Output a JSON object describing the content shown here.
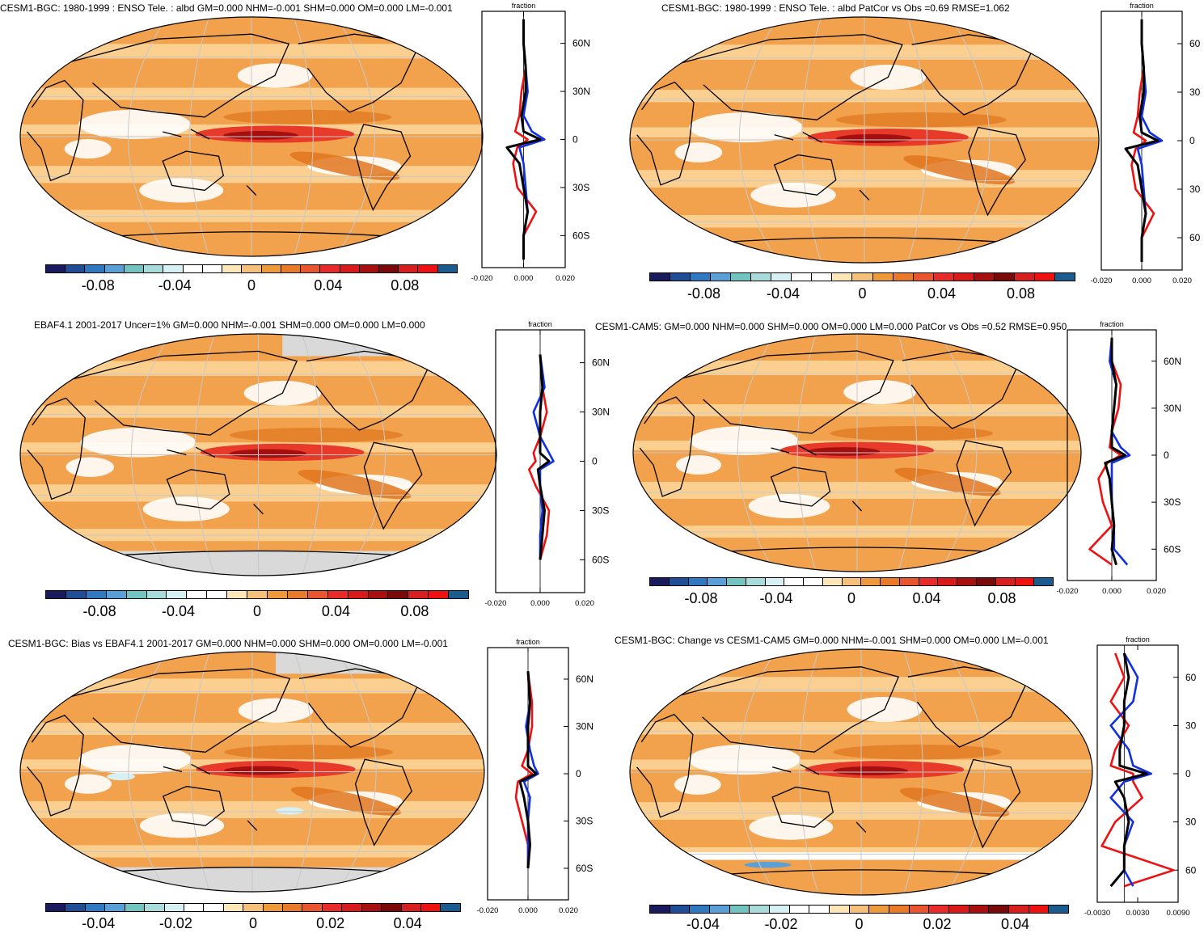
{
  "colors": {
    "land_outline": "#000000",
    "grid": "#c8c8c8",
    "colorscale": [
      "#1a1a5e",
      "#1f4e96",
      "#2f79c0",
      "#5aa0d8",
      "#72c4c0",
      "#a8dcdc",
      "#d6f0f4",
      "#ffffff",
      "#ffffff",
      "#fde6b8",
      "#f5c07a",
      "#ef9a3a",
      "#e87a2a",
      "#e8552f",
      "#e82a2a",
      "#d91a1a",
      "#a80f0f",
      "#7a0a0a",
      "#d81f1f",
      "#ee1111",
      "#1a5c90"
    ],
    "profile_red": "#ee1111",
    "profile_blue": "#1030e0",
    "profile_black": "#000000",
    "missing": "#d9d9d9"
  },
  "panels": [
    {
      "id": "p1",
      "title": "CESM1-BGC: 1980-1999 : ENSO Tele. : albd GM=0.000 NHM=-0.001 SHM=0.000 OM=0.000 LM=-0.001",
      "colorbar_labels": [
        "-0.08",
        "-0.04",
        "0",
        "0.04",
        "0.08"
      ],
      "profile": {
        "unit": "fraction",
        "xticks": [
          "-0.020",
          "0.000",
          "0.020"
        ],
        "lat_labels": [
          "60N",
          "30N",
          "0",
          "30S",
          "60S"
        ]
      }
    },
    {
      "id": "p2",
      "title": "CESM1-BGC: 1980-1999 : ENSO Tele. : albd PatCor vs Obs =0.69 RMSE=1.062",
      "colorbar_labels": [
        "-0.08",
        "-0.04",
        "0",
        "0.04",
        "0.08"
      ],
      "profile": {
        "unit": "fraction",
        "xticks": [
          "-0.020",
          "0.000",
          "0.020"
        ],
        "lat_labels": [
          "60",
          "30",
          "0",
          "30",
          "60"
        ]
      }
    },
    {
      "id": "p3",
      "title": "EBAF4.1 2001-2017 Uncer=1% GM=0.000 NHM=-0.001 SHM=0.000 OM=0.000 LM=0.000",
      "colorbar_labels": [
        "-0.08",
        "-0.04",
        "0",
        "0.04",
        "0.08"
      ],
      "profile": {
        "unit": "fraction",
        "xticks": [
          "-0.020",
          "0.000",
          "0.020"
        ],
        "lat_labels": [
          "60N",
          "30N",
          "0",
          "30S",
          "60S"
        ]
      }
    },
    {
      "id": "p4",
      "title": "CESM1-CAM5: GM=0.000 NHM=0.000 SHM=0.000 OM=0.000 LM=0.000 PatCor vs Obs =0.52 RMSE=0.950",
      "colorbar_labels": [
        "-0.08",
        "-0.04",
        "0",
        "0.04",
        "0.08"
      ],
      "profile": {
        "unit": "fraction",
        "xticks": [
          "-0.020",
          "0.000",
          "0.020"
        ],
        "lat_labels": [
          "60N",
          "30N",
          "0",
          "30S",
          "60S"
        ]
      }
    },
    {
      "id": "p5",
      "title": "CESM1-BGC: Bias vs EBAF4.1 2001-2017 GM=0.000 NHM=0.000 SHM=0.000 OM=0.000 LM=-0.001",
      "colorbar_labels": [
        "-0.04",
        "-0.02",
        "0",
        "0.02",
        "0.04"
      ],
      "profile": {
        "unit": "fraction",
        "xticks": [
          "-0.020",
          "0.000",
          "0.020"
        ],
        "lat_labels": [
          "60N",
          "30N",
          "0",
          "30S",
          "60S"
        ]
      }
    },
    {
      "id": "p6",
      "title": "CESM1-BGC: Change vs CESM1-CAM5 GM=0.000 NHM=-0.001 SHM=0.000 OM=0.000 LM=-0.001",
      "colorbar_labels": [
        "-0.04",
        "-0.02",
        "0",
        "0.02",
        "0.04"
      ],
      "profile": {
        "unit": "fraction",
        "xticks": [
          "-0.0030",
          "0.0030",
          "0.0090"
        ],
        "lat_labels": [
          "60",
          "30",
          "0",
          "30",
          "60"
        ]
      }
    }
  ],
  "chart_data": [
    {
      "type": "heatmap",
      "panel": "p1",
      "title": "CESM1-BGC: 1980-1999 : ENSO Tele. : albd GM=0.000 NHM=-0.001 SHM=0.000 OM=0.000 LM=-0.001",
      "colorbar": {
        "ticks": [
          -0.08,
          -0.04,
          0,
          0.04,
          0.08
        ],
        "range": [
          -0.1,
          0.1
        ]
      },
      "zonal_profile": {
        "unit": "fraction",
        "xlim": [
          -0.02,
          0.02
        ],
        "ylim": [
          -80,
          80
        ],
        "lat": [
          75,
          60,
          45,
          30,
          15,
          5,
          0,
          -5,
          -15,
          -30,
          -45,
          -60,
          -75
        ],
        "series": [
          {
            "name": "red",
            "values": [
              0.0,
              0.0,
              0.001,
              -0.001,
              -0.002,
              -0.004,
              0.002,
              -0.003,
              -0.005,
              -0.003,
              0.006,
              0.0,
              0.0
            ]
          },
          {
            "name": "blue",
            "values": [
              0.0,
              0.0,
              0.001,
              0.002,
              0.0,
              0.004,
              0.01,
              -0.002,
              0.0,
              0.001,
              0.002,
              0.0,
              0.0
            ]
          },
          {
            "name": "black",
            "values": [
              0.0,
              0.0,
              0.001,
              0.001,
              -0.001,
              0.0,
              0.008,
              -0.008,
              -0.002,
              0.0,
              0.002,
              0.0,
              0.0
            ]
          }
        ]
      }
    },
    {
      "type": "heatmap",
      "panel": "p2",
      "title": "CESM1-BGC: 1980-1999 : ENSO Tele. : albd PatCor vs Obs =0.69 RMSE=1.062",
      "colorbar": {
        "ticks": [
          -0.08,
          -0.04,
          0,
          0.04,
          0.08
        ],
        "range": [
          -0.1,
          0.1
        ]
      },
      "zonal_profile": {
        "unit": "fraction",
        "xlim": [
          -0.02,
          0.02
        ],
        "ylim": [
          -80,
          80
        ],
        "lat": [
          75,
          60,
          45,
          30,
          15,
          5,
          0,
          -5,
          -15,
          -30,
          -45,
          -60,
          -75
        ],
        "series": [
          {
            "name": "red",
            "values": [
              0.0,
              0.0,
              0.001,
              -0.001,
              -0.002,
              -0.004,
              0.002,
              -0.003,
              -0.005,
              -0.003,
              0.006,
              0.0,
              0.0
            ]
          },
          {
            "name": "blue",
            "values": [
              0.0,
              0.0,
              0.001,
              0.002,
              0.0,
              0.004,
              0.01,
              -0.002,
              0.0,
              0.001,
              0.002,
              0.0,
              0.0
            ]
          },
          {
            "name": "black",
            "values": [
              0.0,
              0.0,
              0.001,
              0.001,
              -0.001,
              0.0,
              0.008,
              -0.008,
              -0.002,
              0.0,
              0.002,
              0.0,
              0.0
            ]
          }
        ]
      }
    },
    {
      "type": "heatmap",
      "panel": "p3",
      "title": "EBAF4.1 2001-2017 Uncer=1% GM=0.000 NHM=-0.001 SHM=0.000 OM=0.000 LM=0.000",
      "colorbar": {
        "ticks": [
          -0.08,
          -0.04,
          0,
          0.04,
          0.08
        ],
        "range": [
          -0.1,
          0.1
        ]
      },
      "zonal_profile": {
        "unit": "fraction",
        "xlim": [
          -0.02,
          0.02
        ],
        "ylim": [
          -80,
          80
        ],
        "lat": [
          65,
          45,
          30,
          15,
          5,
          0,
          -5,
          -15,
          -30,
          -45,
          -60
        ],
        "series": [
          {
            "name": "red",
            "values": [
              0.0,
              0.001,
              0.003,
              0.0,
              -0.003,
              -0.002,
              -0.005,
              -0.002,
              0.004,
              0.003,
              0.0
            ]
          },
          {
            "name": "blue",
            "values": [
              0.0,
              0.002,
              -0.003,
              0.0,
              0.004,
              0.006,
              0.0,
              0.0,
              0.001,
              0.0,
              0.0
            ]
          },
          {
            "name": "black",
            "values": [
              0.0,
              0.001,
              0.0,
              0.0,
              0.0,
              0.004,
              -0.001,
              0.0,
              0.002,
              0.001,
              0.0
            ]
          }
        ]
      }
    },
    {
      "type": "heatmap",
      "panel": "p4",
      "title": "CESM1-CAM5: GM=0.000 NHM=0.000 SHM=0.000 OM=0.000 LM=0.000 PatCor vs Obs =0.52 RMSE=0.950",
      "colorbar": {
        "ticks": [
          -0.08,
          -0.04,
          0,
          0.04,
          0.08
        ],
        "range": [
          -0.1,
          0.1
        ]
      },
      "zonal_profile": {
        "unit": "fraction",
        "xlim": [
          -0.02,
          0.02
        ],
        "ylim": [
          -80,
          80
        ],
        "lat": [
          75,
          60,
          45,
          30,
          15,
          5,
          0,
          -5,
          -15,
          -30,
          -45,
          -60,
          -70
        ],
        "series": [
          {
            "name": "red",
            "values": [
              0.0,
              0.0,
              0.004,
              0.003,
              0.0,
              -0.001,
              0.004,
              -0.002,
              -0.006,
              -0.004,
              0.0,
              -0.01,
              0.0
            ]
          },
          {
            "name": "blue",
            "values": [
              0.0,
              -0.001,
              0.002,
              0.001,
              0.0,
              0.004,
              0.008,
              0.0,
              0.0,
              0.0,
              0.001,
              0.001,
              0.007
            ]
          },
          {
            "name": "black",
            "values": [
              0.0,
              0.0,
              0.002,
              0.001,
              0.0,
              0.0,
              0.006,
              -0.003,
              -0.001,
              0.0,
              0.001,
              0.0,
              0.002
            ]
          }
        ]
      }
    },
    {
      "type": "heatmap",
      "panel": "p5",
      "title": "CESM1-BGC: Bias vs EBAF4.1 2001-2017 GM=0.000 NHM=0.000 SHM=0.000 OM=0.000 LM=-0.001",
      "colorbar": {
        "ticks": [
          -0.04,
          -0.02,
          0,
          0.02,
          0.04
        ],
        "range": [
          -0.05,
          0.05
        ]
      },
      "zonal_profile": {
        "unit": "fraction",
        "xlim": [
          -0.02,
          0.02
        ],
        "ylim": [
          -80,
          80
        ],
        "lat": [
          65,
          45,
          30,
          15,
          5,
          0,
          -5,
          -15,
          -30,
          -45,
          -60
        ],
        "series": [
          {
            "name": "red",
            "values": [
              0.0,
              0.002,
              0.002,
              0.0,
              -0.003,
              0.002,
              -0.005,
              -0.006,
              -0.003,
              0.0,
              0.0
            ]
          },
          {
            "name": "blue",
            "values": [
              0.0,
              0.001,
              -0.001,
              0.001,
              0.003,
              0.005,
              -0.002,
              0.001,
              0.0,
              0.0,
              0.0
            ]
          },
          {
            "name": "black",
            "values": [
              0.0,
              0.001,
              0.0,
              0.0,
              0.0,
              0.004,
              -0.004,
              -0.002,
              0.0,
              0.001,
              0.0
            ]
          }
        ]
      }
    },
    {
      "type": "heatmap",
      "panel": "p6",
      "title": "CESM1-BGC: Change vs CESM1-CAM5 GM=0.000 NHM=-0.001 SHM=0.000 OM=0.000 LM=-0.001",
      "colorbar": {
        "ticks": [
          -0.04,
          -0.02,
          0,
          0.02,
          0.04
        ],
        "range": [
          -0.05,
          0.05
        ]
      },
      "zonal_profile": {
        "unit": "fraction",
        "xlim": [
          -0.006,
          0.012
        ],
        "ylim": [
          -80,
          80
        ],
        "lat": [
          75,
          60,
          45,
          30,
          15,
          5,
          0,
          -5,
          -15,
          -30,
          -45,
          -60,
          -70
        ],
        "series": [
          {
            "name": "red",
            "values": [
              -0.002,
              0.0,
              -0.003,
              0.001,
              -0.002,
              -0.003,
              0.002,
              0.002,
              0.004,
              -0.002,
              -0.005,
              0.011,
              0.0
            ]
          },
          {
            "name": "blue",
            "values": [
              0.0,
              0.003,
              0.002,
              -0.003,
              0.001,
              0.002,
              0.006,
              0.0,
              -0.003,
              0.002,
              0.0,
              0.0,
              0.002
            ]
          },
          {
            "name": "black",
            "values": [
              0.0,
              0.001,
              0.0,
              0.0,
              -0.001,
              -0.001,
              0.005,
              -0.002,
              0.0,
              0.001,
              0.0,
              0.0,
              -0.003
            ]
          }
        ]
      }
    }
  ]
}
